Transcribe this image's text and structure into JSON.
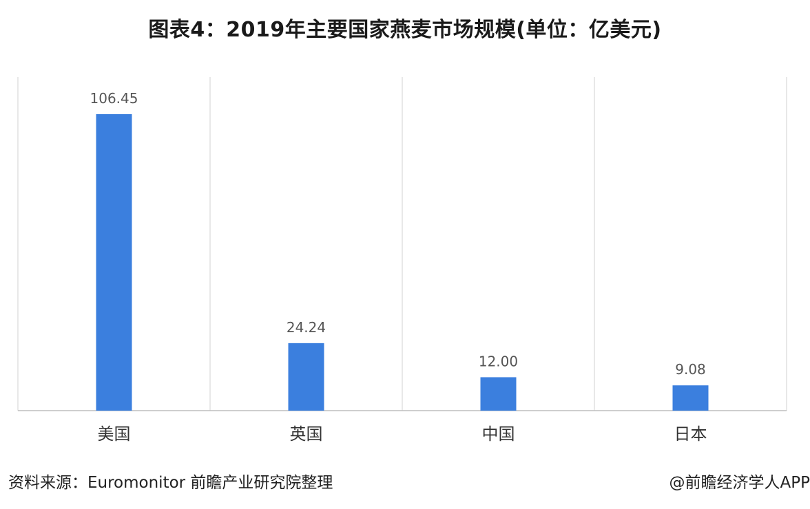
{
  "title": "图表4：2019年主要国家燕麦市场规模(单位：亿美元)",
  "source": "资料来源：Euromonitor 前瞻产业研究院整理",
  "credit": "@前瞻经济学人APP",
  "colors": {
    "bar": "#3b7fde",
    "grid": "#d0d0d0",
    "axis": "#bdbdbd",
    "label": "#555555"
  },
  "chart_data": {
    "type": "bar",
    "categories": [
      "美国",
      "英国",
      "中国",
      "日本"
    ],
    "values": [
      106.45,
      24.24,
      12.0,
      9.08
    ],
    "value_labels": [
      "106.45",
      "24.24",
      "12.00",
      "9.08"
    ],
    "title": "图表4：2019年主要国家燕麦市场规模(单位：亿美元)",
    "xlabel": "",
    "ylabel": "",
    "ylim": [
      0,
      106.45
    ],
    "grid": "vertical separators",
    "legend": "none"
  }
}
